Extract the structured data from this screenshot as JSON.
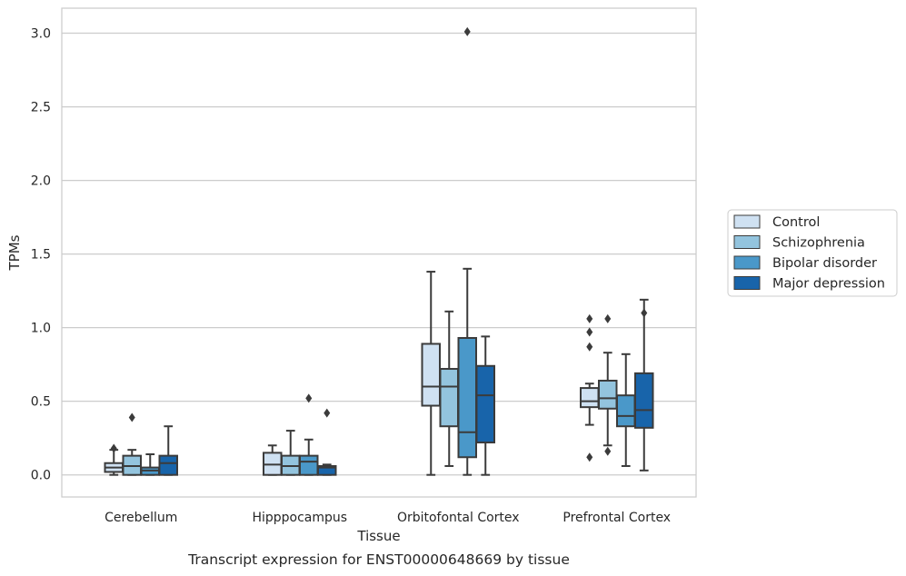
{
  "chart_data": {
    "type": "box",
    "caption": "Transcript expression for ENST00000648669 by tissue",
    "xlabel": "Tissue",
    "ylabel": "TPMs",
    "ylim": [
      -0.15,
      3.17
    ],
    "yticks": [
      "0.0",
      "0.5",
      "1.0",
      "1.5",
      "2.0",
      "2.5",
      "3.0"
    ],
    "grid": "horizontal",
    "legend_position": "right",
    "categories": [
      "Cerebellum",
      "Hipppocampus",
      "Orbitofontal Cortex",
      "Prefrontal Cortex"
    ],
    "series": [
      {
        "name": "Control",
        "color": "#cfe1f2",
        "boxes": [
          {
            "whislo": 0.0,
            "q1": 0.02,
            "med": 0.05,
            "q3": 0.08,
            "whishi": 0.17,
            "fliers": [
              0.18
            ]
          },
          {
            "whislo": 0.0,
            "q1": 0.0,
            "med": 0.07,
            "q3": 0.15,
            "whishi": 0.2,
            "fliers": []
          },
          {
            "whislo": 0.0,
            "q1": 0.47,
            "med": 0.6,
            "q3": 0.89,
            "whishi": 1.38,
            "fliers": []
          },
          {
            "whislo": 0.34,
            "q1": 0.46,
            "med": 0.5,
            "q3": 0.59,
            "whishi": 0.62,
            "fliers": [
              0.12,
              0.87,
              0.97,
              1.06
            ]
          }
        ]
      },
      {
        "name": "Schizophrenia",
        "color": "#93c4de",
        "boxes": [
          {
            "whislo": 0.0,
            "q1": 0.0,
            "med": 0.06,
            "q3": 0.13,
            "whishi": 0.17,
            "fliers": [
              0.39
            ]
          },
          {
            "whislo": 0.0,
            "q1": 0.0,
            "med": 0.06,
            "q3": 0.13,
            "whishi": 0.3,
            "fliers": []
          },
          {
            "whislo": 0.06,
            "q1": 0.33,
            "med": 0.6,
            "q3": 0.72,
            "whishi": 1.11,
            "fliers": []
          },
          {
            "whislo": 0.2,
            "q1": 0.45,
            "med": 0.52,
            "q3": 0.64,
            "whishi": 0.83,
            "fliers": [
              0.16,
              1.06
            ]
          }
        ]
      },
      {
        "name": "Bipolar disorder",
        "color": "#4a98c9",
        "boxes": [
          {
            "whislo": 0.0,
            "q1": 0.0,
            "med": 0.03,
            "q3": 0.05,
            "whishi": 0.14,
            "fliers": []
          },
          {
            "whislo": 0.0,
            "q1": 0.0,
            "med": 0.09,
            "q3": 0.13,
            "whishi": 0.24,
            "fliers": [
              0.52
            ]
          },
          {
            "whislo": 0.0,
            "q1": 0.12,
            "med": 0.29,
            "q3": 0.93,
            "whishi": 1.4,
            "fliers": [
              3.01
            ]
          },
          {
            "whislo": 0.06,
            "q1": 0.33,
            "med": 0.4,
            "q3": 0.54,
            "whishi": 0.82,
            "fliers": []
          }
        ]
      },
      {
        "name": "Major depression",
        "color": "#1864aa",
        "boxes": [
          {
            "whislo": 0.0,
            "q1": 0.0,
            "med": 0.08,
            "q3": 0.13,
            "whishi": 0.33,
            "fliers": []
          },
          {
            "whislo": 0.0,
            "q1": 0.0,
            "med": 0.05,
            "q3": 0.06,
            "whishi": 0.07,
            "fliers": [
              0.42
            ]
          },
          {
            "whislo": 0.0,
            "q1": 0.22,
            "med": 0.54,
            "q3": 0.74,
            "whishi": 0.94,
            "fliers": []
          },
          {
            "whislo": 0.03,
            "q1": 0.32,
            "med": 0.44,
            "q3": 0.69,
            "whishi": 1.19,
            "fliers": [
              1.1
            ]
          }
        ]
      }
    ]
  }
}
